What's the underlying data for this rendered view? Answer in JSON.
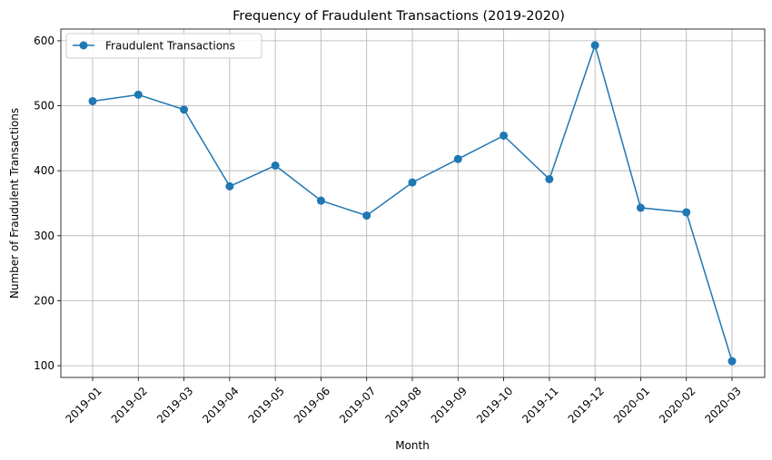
{
  "chart_data": {
    "type": "line",
    "title": "Frequency of Fraudulent Transactions (2019-2020)",
    "xlabel": "Month",
    "ylabel": "Number of Fraudulent Transactions",
    "categories": [
      "2019-01",
      "2019-02",
      "2019-03",
      "2019-04",
      "2019-05",
      "2019-06",
      "2019-07",
      "2019-08",
      "2019-09",
      "2019-10",
      "2019-11",
      "2019-12",
      "2020-01",
      "2020-02",
      "2020-03"
    ],
    "series": [
      {
        "name": "Fraudulent Transactions",
        "values": [
          507,
          517,
          494,
          376,
          408,
          354,
          331,
          382,
          418,
          454,
          387,
          593,
          343,
          336,
          107
        ],
        "color": "#1f77b4",
        "marker": "circle"
      }
    ],
    "ylim": [
      82,
      618
    ],
    "yticks": [
      100,
      200,
      300,
      400,
      500,
      600
    ],
    "grid": true,
    "legend_position": "upper-left",
    "x_tick_rotation": 45
  }
}
